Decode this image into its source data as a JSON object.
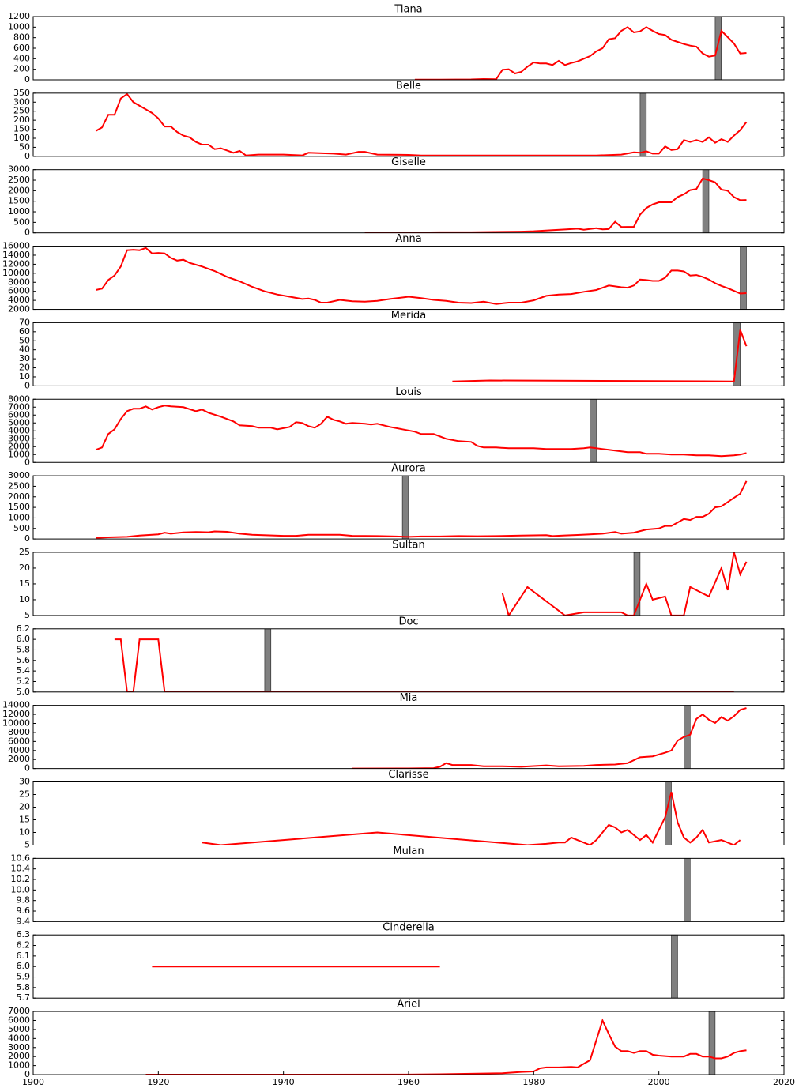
{
  "chart_data": [
    {
      "type": "line",
      "title": "Tiana",
      "color": "#ff0000",
      "highlight": 2009,
      "highlight_color": "#808080",
      "xlim": [
        1900,
        2020
      ],
      "ylim": [
        0,
        1200
      ],
      "yticks": [
        0,
        200,
        400,
        600,
        800,
        1000,
        1200
      ],
      "x": [
        1961,
        1965,
        1970,
        1972,
        1974,
        1975,
        1976,
        1977,
        1978,
        1979,
        1980,
        1981,
        1982,
        1983,
        1984,
        1985,
        1986,
        1987,
        1988,
        1989,
        1990,
        1991,
        1992,
        1993,
        1994,
        1995,
        1996,
        1997,
        1998,
        1999,
        2000,
        2001,
        2002,
        2003,
        2004,
        2005,
        2006,
        2007,
        2008,
        2009,
        2010,
        2011,
        2012,
        2013,
        2014
      ],
      "values": [
        5,
        5,
        8,
        15,
        10,
        190,
        200,
        120,
        150,
        250,
        330,
        310,
        310,
        280,
        360,
        280,
        320,
        350,
        400,
        450,
        540,
        600,
        770,
        790,
        930,
        1000,
        900,
        920,
        1000,
        930,
        870,
        850,
        760,
        720,
        680,
        650,
        630,
        500,
        440,
        460,
        930,
        810,
        690,
        500,
        510
      ]
    },
    {
      "type": "line",
      "title": "Belle",
      "color": "#ff0000",
      "highlight": 1997,
      "highlight_color": "#808080",
      "xlim": [
        1900,
        2020
      ],
      "ylim": [
        0,
        350
      ],
      "yticks": [
        0,
        50,
        100,
        150,
        200,
        250,
        300,
        350
      ],
      "x": [
        1910,
        1911,
        1912,
        1913,
        1914,
        1915,
        1916,
        1918,
        1919,
        1920,
        1921,
        1922,
        1923,
        1924,
        1925,
        1926,
        1927,
        1928,
        1929,
        1930,
        1932,
        1933,
        1934,
        1936,
        1940,
        1943,
        1944,
        1948,
        1950,
        1952,
        1953,
        1955,
        1960,
        1962,
        1990,
        1994,
        1996,
        1997,
        1998,
        1999,
        2000,
        2001,
        2002,
        2003,
        2004,
        2005,
        2006,
        2007,
        2008,
        2009,
        2010,
        2011,
        2012,
        2013,
        2014
      ],
      "values": [
        140,
        160,
        230,
        230,
        320,
        345,
        300,
        260,
        240,
        210,
        165,
        165,
        135,
        115,
        105,
        80,
        65,
        65,
        40,
        45,
        20,
        30,
        5,
        10,
        10,
        5,
        20,
        15,
        10,
        25,
        25,
        10,
        8,
        5,
        5,
        10,
        22,
        20,
        28,
        15,
        15,
        55,
        35,
        40,
        90,
        80,
        90,
        80,
        105,
        75,
        95,
        80,
        115,
        145,
        190
      ]
    },
    {
      "type": "line",
      "title": "Giselle",
      "color": "#ff0000",
      "highlight": 2007,
      "highlight_color": "#808080",
      "xlim": [
        1900,
        2020
      ],
      "ylim": [
        0,
        3000
      ],
      "yticks": [
        0,
        500,
        1000,
        1500,
        2000,
        2500,
        3000
      ],
      "x": [
        1953,
        1955,
        1960,
        1965,
        1970,
        1975,
        1978,
        1980,
        1983,
        1985,
        1987,
        1988,
        1990,
        1991,
        1992,
        1993,
        1994,
        1996,
        1997,
        1998,
        1999,
        2000,
        2001,
        2002,
        2003,
        2004,
        2005,
        2006,
        2007,
        2008,
        2009,
        2010,
        2011,
        2012,
        2013,
        2014
      ],
      "values": [
        0,
        20,
        20,
        30,
        30,
        50,
        60,
        80,
        130,
        160,
        200,
        150,
        220,
        170,
        180,
        530,
        280,
        290,
        870,
        1180,
        1350,
        1450,
        1450,
        1450,
        1700,
        1830,
        2030,
        2080,
        2580,
        2500,
        2400,
        2050,
        2000,
        1700,
        1550,
        1560
      ]
    },
    {
      "type": "line",
      "title": "Anna",
      "color": "#ff0000",
      "highlight": 2013,
      "highlight_color": "#808080",
      "xlim": [
        1900,
        2020
      ],
      "ylim": [
        2000,
        16000
      ],
      "yticks": [
        2000,
        4000,
        6000,
        8000,
        10000,
        12000,
        14000,
        16000
      ],
      "x": [
        1910,
        1911,
        1912,
        1913,
        1914,
        1915,
        1916,
        1917,
        1918,
        1919,
        1920,
        1921,
        1922,
        1923,
        1924,
        1925,
        1927,
        1929,
        1931,
        1933,
        1935,
        1937,
        1939,
        1941,
        1943,
        1944,
        1945,
        1946,
        1947,
        1949,
        1951,
        1953,
        1955,
        1957,
        1960,
        1962,
        1964,
        1966,
        1968,
        1970,
        1972,
        1974,
        1976,
        1978,
        1980,
        1982,
        1984,
        1986,
        1988,
        1990,
        1992,
        1994,
        1995,
        1996,
        1997,
        1998,
        1999,
        2000,
        2001,
        2002,
        2003,
        2004,
        2005,
        2006,
        2007,
        2008,
        2009,
        2010,
        2011,
        2012,
        2013,
        2014
      ],
      "values": [
        6300,
        6600,
        8500,
        9500,
        11500,
        15100,
        15200,
        15100,
        15600,
        14400,
        14500,
        14400,
        13400,
        12800,
        13000,
        12300,
        11500,
        10500,
        9200,
        8200,
        7000,
        6000,
        5300,
        4800,
        4300,
        4400,
        4100,
        3500,
        3500,
        4100,
        3800,
        3700,
        3900,
        4300,
        4800,
        4500,
        4100,
        3900,
        3500,
        3400,
        3700,
        3200,
        3500,
        3500,
        4000,
        5000,
        5300,
        5400,
        5900,
        6300,
        7300,
        6900,
        6800,
        7300,
        8600,
        8500,
        8300,
        8300,
        9000,
        10600,
        10600,
        10400,
        9500,
        9600,
        9200,
        8600,
        7800,
        7200,
        6700,
        6100,
        5500,
        5600
      ]
    },
    {
      "type": "line",
      "title": "Merida",
      "color": "#ff0000",
      "highlight": 2012,
      "highlight_color": "#808080",
      "xlim": [
        1900,
        2020
      ],
      "ylim": [
        0,
        70
      ],
      "yticks": [
        0,
        10,
        20,
        30,
        40,
        50,
        60,
        70
      ],
      "x": [
        1967,
        1973,
        2012,
        2013,
        2014
      ],
      "values": [
        5,
        6,
        5,
        62,
        44
      ]
    },
    {
      "type": "line",
      "title": "Louis",
      "color": "#ff0000",
      "highlight": 1989,
      "highlight_color": "#808080",
      "xlim": [
        1900,
        2020
      ],
      "ylim": [
        0,
        8000
      ],
      "yticks": [
        0,
        1000,
        2000,
        3000,
        4000,
        5000,
        6000,
        7000,
        8000
      ],
      "x": [
        1910,
        1911,
        1912,
        1913,
        1914,
        1915,
        1916,
        1917,
        1918,
        1919,
        1920,
        1921,
        1922,
        1924,
        1926,
        1927,
        1928,
        1930,
        1932,
        1933,
        1935,
        1936,
        1938,
        1939,
        1941,
        1942,
        1943,
        1944,
        1945,
        1946,
        1947,
        1948,
        1949,
        1950,
        1951,
        1953,
        1954,
        1955,
        1957,
        1959,
        1961,
        1962,
        1964,
        1966,
        1968,
        1970,
        1971,
        1972,
        1974,
        1976,
        1978,
        1980,
        1982,
        1984,
        1986,
        1988,
        1989,
        1990,
        1992,
        1993,
        1995,
        1997,
        1998,
        2000,
        2002,
        2004,
        2006,
        2008,
        2010,
        2012,
        2013,
        2014
      ],
      "values": [
        1600,
        1900,
        3600,
        4200,
        5500,
        6500,
        6800,
        6800,
        7100,
        6700,
        7000,
        7200,
        7100,
        7000,
        6500,
        6700,
        6300,
        5800,
        5200,
        4700,
        4600,
        4400,
        4400,
        4200,
        4500,
        5100,
        5000,
        4600,
        4400,
        4900,
        5800,
        5400,
        5200,
        4900,
        5000,
        4900,
        4800,
        4900,
        4500,
        4200,
        3900,
        3600,
        3600,
        3000,
        2700,
        2600,
        2100,
        1900,
        1900,
        1800,
        1800,
        1800,
        1700,
        1700,
        1700,
        1800,
        1900,
        1800,
        1600,
        1500,
        1300,
        1300,
        1100,
        1100,
        1000,
        1000,
        900,
        900,
        800,
        900,
        1000,
        1200
      ]
    },
    {
      "type": "line",
      "title": "Aurora",
      "color": "#ff0000",
      "highlight": 1959,
      "highlight_color": "#808080",
      "xlim": [
        1900,
        2020
      ],
      "ylim": [
        0,
        3000
      ],
      "yticks": [
        0,
        500,
        1000,
        1500,
        2000,
        2500,
        3000
      ],
      "x": [
        1910,
        1912,
        1915,
        1917,
        1920,
        1921,
        1922,
        1924,
        1926,
        1928,
        1929,
        1931,
        1933,
        1935,
        1940,
        1942,
        1944,
        1947,
        1949,
        1951,
        1955,
        1958,
        1960,
        1962,
        1965,
        1968,
        1971,
        1974,
        1978,
        1982,
        1983,
        1985,
        1987,
        1989,
        1991,
        1993,
        1994,
        1996,
        1998,
        2000,
        2001,
        2002,
        2003,
        2004,
        2005,
        2006,
        2007,
        2008,
        2009,
        2010,
        2011,
        2012,
        2013,
        2014
      ],
      "values": [
        50,
        80,
        100,
        160,
        220,
        300,
        250,
        310,
        330,
        320,
        360,
        340,
        250,
        200,
        150,
        150,
        200,
        200,
        200,
        150,
        140,
        120,
        100,
        120,
        120,
        140,
        130,
        140,
        160,
        180,
        140,
        170,
        190,
        220,
        250,
        330,
        250,
        300,
        450,
        500,
        620,
        620,
        780,
        950,
        900,
        1050,
        1050,
        1200,
        1500,
        1550,
        1750,
        1950,
        2150,
        2750
      ]
    },
    {
      "type": "line",
      "title": "Sultan",
      "color": "#ff0000",
      "highlight": 1996,
      "highlight_color": "#808080",
      "xlim": [
        1900,
        2020
      ],
      "ylim": [
        5,
        25
      ],
      "yticks": [
        5,
        10,
        15,
        20,
        25
      ],
      "x": [
        1975,
        1976,
        1979,
        1985,
        1988,
        1994,
        1995,
        1996,
        1998,
        1999,
        2001,
        2002,
        2004,
        2005,
        2008,
        2010,
        2011,
        2012,
        2013,
        2014
      ],
      "values": [
        12,
        5,
        14,
        5,
        6,
        6,
        5,
        5,
        15,
        10,
        11,
        5,
        5,
        14,
        11,
        20,
        13,
        25,
        18,
        22
      ]
    },
    {
      "type": "line",
      "title": "Doc",
      "color": "#ff0000",
      "highlight": 1937,
      "highlight_color": "#808080",
      "xlim": [
        1900,
        2020
      ],
      "ylim": [
        5,
        6.2
      ],
      "yticks": [
        {
          "value": 5,
          "label": "5.0"
        },
        5.2,
        5.4,
        5.6,
        5.8,
        {
          "value": 6,
          "label": "6.0"
        },
        6.2
      ],
      "x": [
        1913,
        1914,
        1915,
        1916,
        1917,
        1920,
        1921,
        2012
      ],
      "values": [
        6,
        6,
        5,
        5,
        6,
        6,
        5,
        5
      ]
    },
    {
      "type": "line",
      "title": "Mia",
      "color": "#ff0000",
      "highlight": 2004,
      "highlight_color": "#808080",
      "xlim": [
        1900,
        2020
      ],
      "ylim": [
        0,
        14000
      ],
      "yticks": [
        0,
        2000,
        4000,
        6000,
        8000,
        10000,
        12000,
        14000
      ],
      "x": [
        1951,
        1960,
        1964,
        1965,
        1966,
        1967,
        1970,
        1972,
        1975,
        1978,
        1982,
        1984,
        1988,
        1990,
        1993,
        1995,
        1997,
        1999,
        2001,
        2002,
        2003,
        2004,
        2005,
        2006,
        2007,
        2008,
        2009,
        2010,
        2011,
        2012,
        2013,
        2014
      ],
      "values": [
        0,
        20,
        100,
        400,
        1200,
        800,
        800,
        500,
        500,
        400,
        700,
        500,
        600,
        800,
        900,
        1200,
        2500,
        2700,
        3500,
        4000,
        6200,
        7000,
        7500,
        11000,
        12000,
        10800,
        10100,
        11400,
        10600,
        11600,
        13000,
        13400
      ]
    },
    {
      "type": "line",
      "title": "Clarisse",
      "color": "#ff0000",
      "highlight": 2001,
      "highlight_color": "#808080",
      "xlim": [
        1900,
        2020
      ],
      "ylim": [
        5,
        30
      ],
      "yticks": [
        5,
        10,
        15,
        20,
        25,
        30
      ],
      "x": [
        1927,
        1930,
        1955,
        1979,
        1982,
        1984,
        1985,
        1986,
        1989,
        1990,
        1992,
        1993,
        1994,
        1995,
        1997,
        1998,
        1999,
        2001,
        2002,
        2003,
        2004,
        2005,
        2006,
        2007,
        2008,
        2010,
        2012,
        2013
      ],
      "values": [
        6,
        5,
        10,
        5,
        5.5,
        6,
        6,
        8,
        5,
        7,
        13,
        12,
        10,
        11,
        7,
        9,
        6,
        16,
        26,
        14,
        8,
        6,
        8,
        11,
        6,
        7,
        5,
        7
      ]
    },
    {
      "type": "line",
      "title": "Mulan",
      "color": "#ff0000",
      "highlight": 2004,
      "highlight_color": "#808080",
      "xlim": [
        1900,
        2020
      ],
      "ylim": [
        9.4,
        10.6
      ],
      "yticks": [
        9.4,
        9.6,
        9.8,
        {
          "value": 10,
          "label": "10.0"
        },
        10.2,
        10.4,
        10.6
      ],
      "x": [],
      "values": []
    },
    {
      "type": "line",
      "title": "Cinderella",
      "color": "#ff0000",
      "highlight": 2002,
      "highlight_color": "#808080",
      "xlim": [
        1900,
        2020
      ],
      "ylim": [
        5.7,
        6.3
      ],
      "yticks": [
        5.7,
        5.8,
        5.9,
        {
          "value": 6,
          "label": "6.0"
        },
        6.1,
        6.2,
        6.3
      ],
      "x": [
        1919,
        1965
      ],
      "values": [
        6,
        6
      ]
    },
    {
      "type": "line",
      "title": "Ariel",
      "color": "#ff0000",
      "highlight": 2008,
      "highlight_color": "#808080",
      "xlim": [
        1900,
        2020
      ],
      "ylim": [
        0,
        7000
      ],
      "yticks": [
        0,
        1000,
        2000,
        3000,
        4000,
        5000,
        6000,
        7000
      ],
      "xticks": [
        1900,
        1920,
        1940,
        1960,
        1980,
        2000,
        2020
      ],
      "x": [
        1918,
        1960,
        1965,
        1970,
        1975,
        1978,
        1980,
        1981,
        1982,
        1984,
        1986,
        1987,
        1989,
        1991,
        1992,
        1993,
        1994,
        1995,
        1996,
        1997,
        1998,
        1999,
        2000,
        2002,
        2004,
        2005,
        2006,
        2007,
        2008,
        2009,
        2010,
        2011,
        2012,
        2013,
        2014
      ],
      "values": [
        0,
        10,
        50,
        100,
        150,
        300,
        350,
        700,
        800,
        800,
        850,
        800,
        1600,
        6000,
        4500,
        3100,
        2600,
        2600,
        2400,
        2600,
        2600,
        2200,
        2100,
        2000,
        2000,
        2300,
        2300,
        2000,
        2000,
        1800,
        1800,
        2000,
        2400,
        2600,
        2700
      ]
    }
  ]
}
